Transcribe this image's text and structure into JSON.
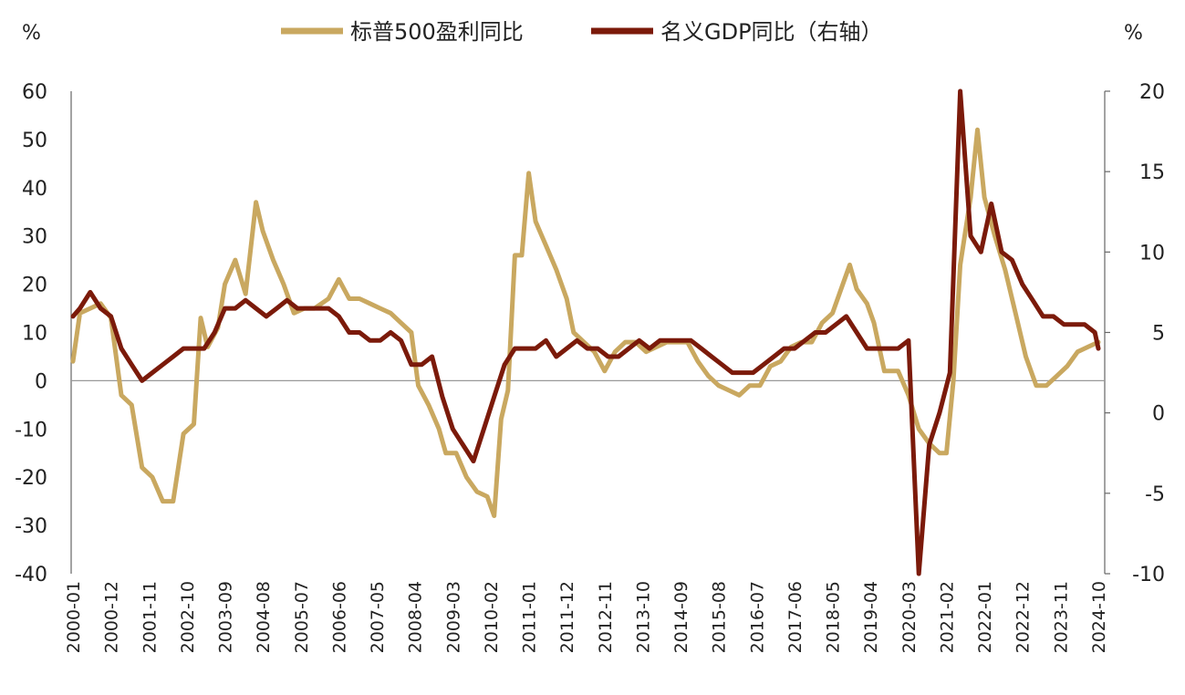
{
  "chart_data": {
    "type": "line",
    "left_unit": "%",
    "right_unit": "%",
    "x_tick_labels": [
      "2000-01",
      "2000-12",
      "2001-11",
      "2002-10",
      "2003-09",
      "2004-08",
      "2005-07",
      "2006-06",
      "2007-05",
      "2008-04",
      "2009-03",
      "2010-02",
      "2011-01",
      "2011-12",
      "2012-11",
      "2013-10",
      "2014-09",
      "2015-08",
      "2016-07",
      "2017-06",
      "2018-05",
      "2019-04",
      "2020-03",
      "2021-02",
      "2022-01",
      "2022-12",
      "2023-11",
      "2024-10"
    ],
    "left_axis": {
      "ylim": [
        -40,
        60
      ],
      "ticks": [
        60,
        50,
        40,
        30,
        20,
        10,
        0,
        -10,
        -20,
        -30,
        -40
      ]
    },
    "right_axis": {
      "ylim": [
        -10,
        20
      ],
      "ticks": [
        20,
        15,
        10,
        5,
        0,
        -5,
        -10
      ]
    },
    "grid": false,
    "legend_position": "top-center",
    "series": [
      {
        "name": "标普500盈利同比",
        "axis": "left",
        "color": "#C9A860",
        "points": [
          [
            "2000-01",
            4
          ],
          [
            "2000-03",
            14
          ],
          [
            "2000-06",
            15
          ],
          [
            "2000-09",
            16
          ],
          [
            "2000-12",
            13
          ],
          [
            "2001-03",
            -3
          ],
          [
            "2001-06",
            -5
          ],
          [
            "2001-09",
            -18
          ],
          [
            "2001-12",
            -20
          ],
          [
            "2002-03",
            -25
          ],
          [
            "2002-06",
            -25
          ],
          [
            "2002-09",
            -11
          ],
          [
            "2002-12",
            -9
          ],
          [
            "2003-02",
            13
          ],
          [
            "2003-04",
            7
          ],
          [
            "2003-07",
            11
          ],
          [
            "2003-09",
            20
          ],
          [
            "2003-12",
            25
          ],
          [
            "2004-03",
            18
          ],
          [
            "2004-06",
            37
          ],
          [
            "2004-08",
            31
          ],
          [
            "2004-11",
            25
          ],
          [
            "2005-02",
            20
          ],
          [
            "2005-05",
            14
          ],
          [
            "2005-08",
            15
          ],
          [
            "2005-11",
            15
          ],
          [
            "2006-03",
            17
          ],
          [
            "2006-06",
            21
          ],
          [
            "2006-09",
            17
          ],
          [
            "2006-12",
            17
          ],
          [
            "2007-03",
            16
          ],
          [
            "2007-06",
            15
          ],
          [
            "2007-09",
            14
          ],
          [
            "2007-12",
            12
          ],
          [
            "2008-03",
            10
          ],
          [
            "2008-05",
            -1
          ],
          [
            "2008-08",
            -5
          ],
          [
            "2008-11",
            -10
          ],
          [
            "2009-01",
            -15
          ],
          [
            "2009-04",
            -15
          ],
          [
            "2009-07",
            -20
          ],
          [
            "2009-10",
            -23
          ],
          [
            "2010-01",
            -24
          ],
          [
            "2010-03",
            -28
          ],
          [
            "2010-05",
            -8
          ],
          [
            "2010-07",
            -2
          ],
          [
            "2010-09",
            26
          ],
          [
            "2010-11",
            26
          ],
          [
            "2011-01",
            43
          ],
          [
            "2011-03",
            33
          ],
          [
            "2011-06",
            28
          ],
          [
            "2011-09",
            23
          ],
          [
            "2011-12",
            17
          ],
          [
            "2012-02",
            10
          ],
          [
            "2012-05",
            8
          ],
          [
            "2012-08",
            6
          ],
          [
            "2012-11",
            2
          ],
          [
            "2013-02",
            6
          ],
          [
            "2013-05",
            8
          ],
          [
            "2013-08",
            8
          ],
          [
            "2013-11",
            6
          ],
          [
            "2014-02",
            7
          ],
          [
            "2014-05",
            8
          ],
          [
            "2014-08",
            8
          ],
          [
            "2014-11",
            8
          ],
          [
            "2015-02",
            4
          ],
          [
            "2015-05",
            1
          ],
          [
            "2015-08",
            -1
          ],
          [
            "2015-11",
            -2
          ],
          [
            "2016-02",
            -3
          ],
          [
            "2016-05",
            -1
          ],
          [
            "2016-08",
            -1
          ],
          [
            "2016-11",
            3
          ],
          [
            "2017-02",
            4
          ],
          [
            "2017-05",
            7
          ],
          [
            "2017-08",
            8
          ],
          [
            "2017-11",
            8
          ],
          [
            "2018-02",
            12
          ],
          [
            "2018-05",
            14
          ],
          [
            "2018-08",
            20
          ],
          [
            "2018-10",
            24
          ],
          [
            "2018-12",
            19
          ],
          [
            "2019-03",
            16
          ],
          [
            "2019-05",
            12
          ],
          [
            "2019-08",
            2
          ],
          [
            "2019-12",
            2
          ],
          [
            "2020-03",
            -3
          ],
          [
            "2020-06",
            -10
          ],
          [
            "2020-09",
            -13
          ],
          [
            "2020-12",
            -15
          ],
          [
            "2021-02",
            -15
          ],
          [
            "2021-04",
            0
          ],
          [
            "2021-06",
            24
          ],
          [
            "2021-09",
            38
          ],
          [
            "2021-11",
            52
          ],
          [
            "2022-01",
            38
          ],
          [
            "2022-04",
            30
          ],
          [
            "2022-07",
            23
          ],
          [
            "2022-10",
            14
          ],
          [
            "2023-01",
            5
          ],
          [
            "2023-04",
            -1
          ],
          [
            "2023-07",
            -1
          ],
          [
            "2023-10",
            1
          ],
          [
            "2024-01",
            3
          ],
          [
            "2024-04",
            6
          ],
          [
            "2024-07",
            7
          ],
          [
            "2024-10",
            8
          ]
        ]
      },
      {
        "name": "名义GDP同比（右轴）",
        "axis": "right",
        "color": "#7B1A0A",
        "points": [
          [
            "2000-01",
            6
          ],
          [
            "2000-03",
            6.5
          ],
          [
            "2000-06",
            7.5
          ],
          [
            "2000-09",
            6.5
          ],
          [
            "2000-12",
            6
          ],
          [
            "2001-03",
            4
          ],
          [
            "2001-06",
            3
          ],
          [
            "2001-09",
            2
          ],
          [
            "2001-12",
            2.5
          ],
          [
            "2002-03",
            3
          ],
          [
            "2002-06",
            3.5
          ],
          [
            "2002-09",
            4
          ],
          [
            "2002-12",
            4
          ],
          [
            "2003-03",
            4
          ],
          [
            "2003-06",
            5
          ],
          [
            "2003-09",
            6.5
          ],
          [
            "2003-12",
            6.5
          ],
          [
            "2004-03",
            7
          ],
          [
            "2004-06",
            6.5
          ],
          [
            "2004-09",
            6
          ],
          [
            "2004-12",
            6.5
          ],
          [
            "2005-03",
            7
          ],
          [
            "2005-06",
            6.5
          ],
          [
            "2005-09",
            6.5
          ],
          [
            "2005-12",
            6.5
          ],
          [
            "2006-03",
            6.5
          ],
          [
            "2006-06",
            6
          ],
          [
            "2006-09",
            5
          ],
          [
            "2006-12",
            5
          ],
          [
            "2007-03",
            4.5
          ],
          [
            "2007-06",
            4.5
          ],
          [
            "2007-09",
            5
          ],
          [
            "2007-12",
            4.5
          ],
          [
            "2008-03",
            3
          ],
          [
            "2008-06",
            3
          ],
          [
            "2008-09",
            3.5
          ],
          [
            "2008-12",
            1
          ],
          [
            "2009-03",
            -1
          ],
          [
            "2009-06",
            -2
          ],
          [
            "2009-09",
            -3
          ],
          [
            "2009-12",
            -1
          ],
          [
            "2010-03",
            1
          ],
          [
            "2010-06",
            3
          ],
          [
            "2010-09",
            4
          ],
          [
            "2010-12",
            4
          ],
          [
            "2011-03",
            4
          ],
          [
            "2011-06",
            4.5
          ],
          [
            "2011-09",
            3.5
          ],
          [
            "2011-12",
            4
          ],
          [
            "2012-03",
            4.5
          ],
          [
            "2012-06",
            4
          ],
          [
            "2012-09",
            4
          ],
          [
            "2012-12",
            3.5
          ],
          [
            "2013-03",
            3.5
          ],
          [
            "2013-06",
            4
          ],
          [
            "2013-09",
            4.5
          ],
          [
            "2013-12",
            4
          ],
          [
            "2014-03",
            4.5
          ],
          [
            "2014-06",
            4.5
          ],
          [
            "2014-09",
            4.5
          ],
          [
            "2014-12",
            4.5
          ],
          [
            "2015-03",
            4
          ],
          [
            "2015-06",
            3.5
          ],
          [
            "2015-09",
            3
          ],
          [
            "2015-12",
            2.5
          ],
          [
            "2016-03",
            2.5
          ],
          [
            "2016-06",
            2.5
          ],
          [
            "2016-09",
            3
          ],
          [
            "2016-12",
            3.5
          ],
          [
            "2017-03",
            4
          ],
          [
            "2017-06",
            4
          ],
          [
            "2017-09",
            4.5
          ],
          [
            "2017-12",
            5
          ],
          [
            "2018-03",
            5
          ],
          [
            "2018-06",
            5.5
          ],
          [
            "2018-09",
            6
          ],
          [
            "2018-12",
            5
          ],
          [
            "2019-03",
            4
          ],
          [
            "2019-06",
            4
          ],
          [
            "2019-09",
            4
          ],
          [
            "2019-12",
            4
          ],
          [
            "2020-03",
            4.5
          ],
          [
            "2020-06",
            -10
          ],
          [
            "2020-09",
            -2
          ],
          [
            "2020-12",
            0
          ],
          [
            "2021-03",
            2.5
          ],
          [
            "2021-06",
            20
          ],
          [
            "2021-09",
            11
          ],
          [
            "2021-12",
            10
          ],
          [
            "2022-03",
            13
          ],
          [
            "2022-06",
            10
          ],
          [
            "2022-09",
            9.5
          ],
          [
            "2022-12",
            8
          ],
          [
            "2023-03",
            7
          ],
          [
            "2023-06",
            6
          ],
          [
            "2023-09",
            6
          ],
          [
            "2023-12",
            5.5
          ],
          [
            "2024-03",
            5.5
          ],
          [
            "2024-06",
            5.5
          ],
          [
            "2024-09",
            5
          ],
          [
            "2024-10",
            4
          ]
        ]
      }
    ]
  }
}
